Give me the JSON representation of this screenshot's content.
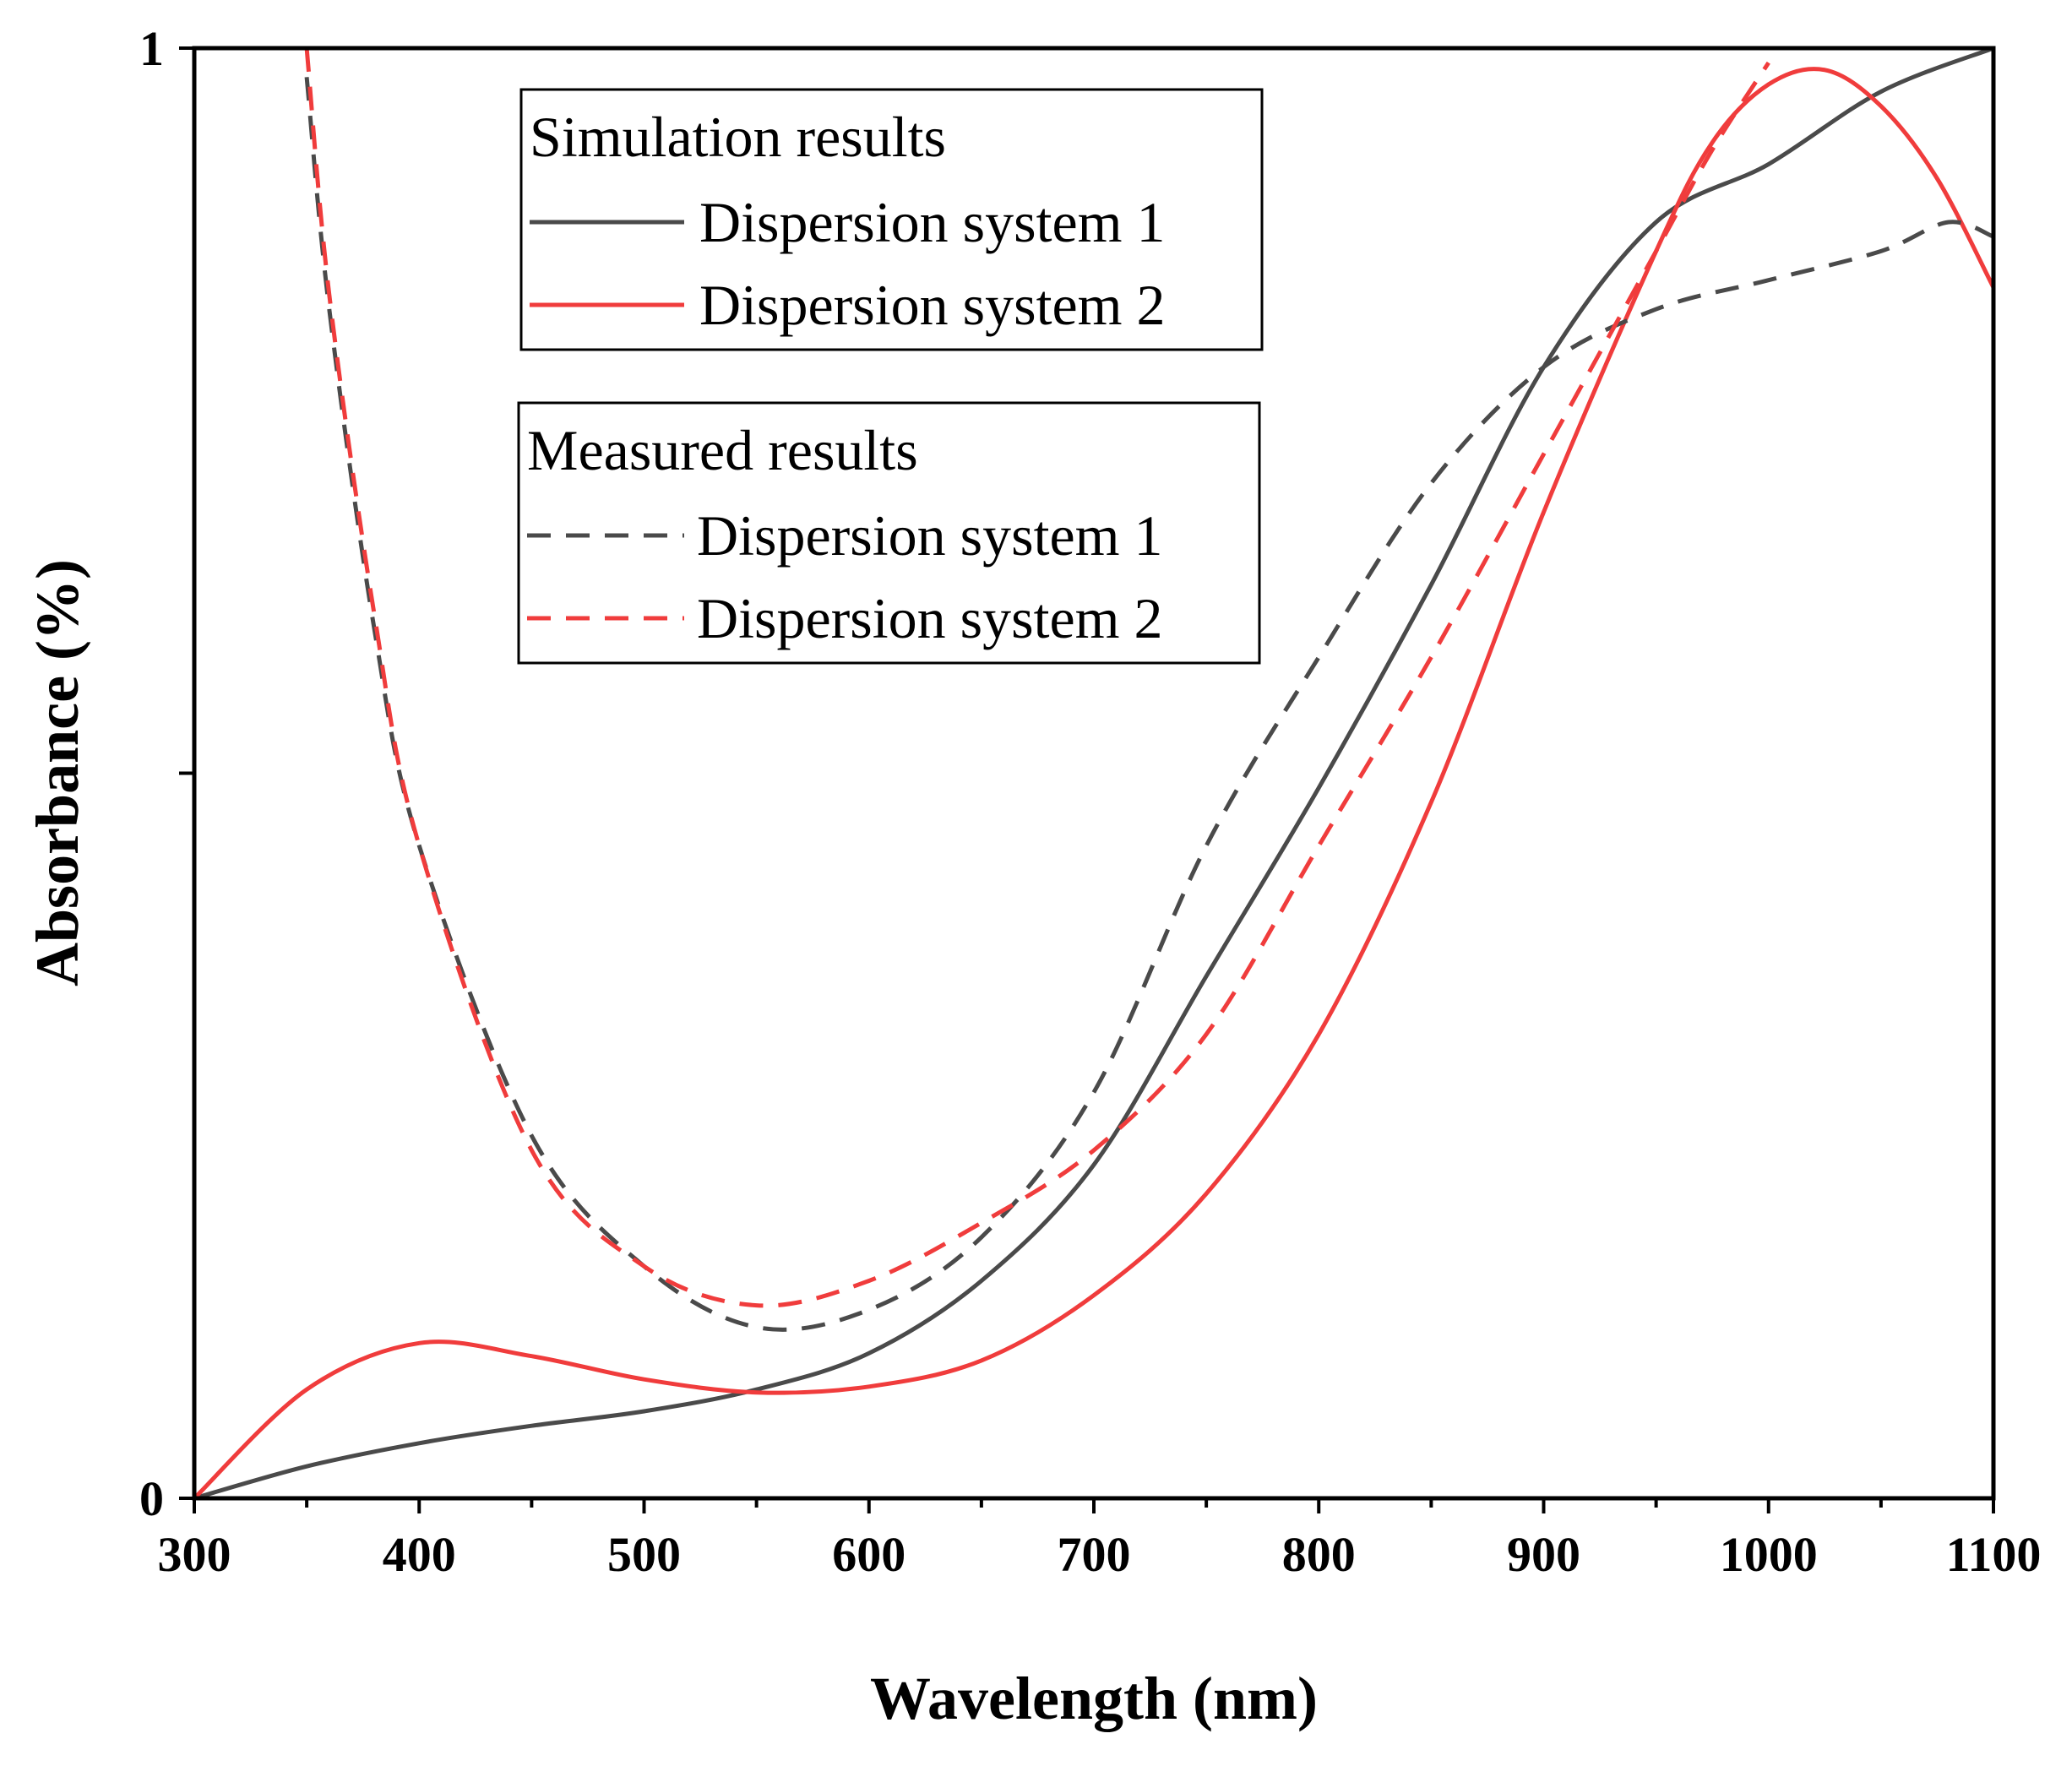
{
  "chart_data": {
    "type": "line",
    "xlabel": "Wavelength (nm)",
    "ylabel": "Absorbance (%)",
    "xlim": [
      300,
      1100
    ],
    "ylim": [
      0,
      1
    ],
    "x_ticks": [
      300,
      400,
      500,
      600,
      700,
      800,
      900,
      1000,
      1100
    ],
    "x_tick_labels": [
      "300",
      "400",
      "500",
      "600",
      "700",
      "800",
      "900",
      "1000",
      "1100"
    ],
    "y_ticks": [
      0,
      0.5,
      1
    ],
    "y_tick_labels": [
      "0",
      "",
      "1"
    ],
    "legend_groups": [
      {
        "title": "Simulation results",
        "entries": [
          "Dispersion system 1",
          "Dispersion system 2"
        ]
      },
      {
        "title": "Measured results",
        "entries": [
          "Dispersion system 1",
          "Dispersion system 2"
        ]
      }
    ],
    "series": [
      {
        "name": "Simulation results - Dispersion system 1",
        "color": "#4a4a4a",
        "dash": "solid",
        "x": [
          300,
          350,
          400,
          450,
          500,
          550,
          600,
          650,
          700,
          750,
          800,
          850,
          900,
          950,
          1000,
          1050,
          1100
        ],
        "y": [
          0.0,
          0.022,
          0.038,
          0.05,
          0.06,
          0.075,
          0.1,
          0.15,
          0.23,
          0.36,
          0.49,
          0.63,
          0.78,
          0.88,
          0.92,
          0.97,
          1.0
        ]
      },
      {
        "name": "Simulation results - Dispersion system 2",
        "color": "#f03c3c",
        "dash": "solid",
        "x": [
          300,
          350,
          400,
          450,
          500,
          550,
          600,
          650,
          700,
          750,
          800,
          850,
          900,
          950,
          975,
          1000,
          1025,
          1050,
          1075,
          1100
        ],
        "y": [
          0.0,
          0.075,
          0.107,
          0.098,
          0.082,
          0.073,
          0.077,
          0.095,
          0.14,
          0.21,
          0.32,
          0.48,
          0.68,
          0.86,
          0.935,
          0.975,
          0.985,
          0.96,
          0.91,
          0.835
        ]
      },
      {
        "name": "Measured results - Dispersion system 1",
        "color": "#4a4a4a",
        "dash": "dashed",
        "x": [
          350,
          360,
          380,
          400,
          450,
          500,
          550,
          600,
          650,
          700,
          750,
          800,
          850,
          900,
          950,
          1000,
          1050,
          1080,
          1100
        ],
        "y": [
          0.98,
          0.82,
          0.6,
          0.45,
          0.25,
          0.16,
          0.118,
          0.13,
          0.18,
          0.28,
          0.45,
          0.58,
          0.7,
          0.78,
          0.82,
          0.84,
          0.86,
          0.88,
          0.87
        ]
      },
      {
        "name": "Measured results - Dispersion system 2",
        "color": "#f03c3c",
        "dash": "dashed",
        "x": [
          350,
          360,
          380,
          400,
          450,
          500,
          550,
          600,
          650,
          700,
          750,
          800,
          850,
          900,
          950,
          975,
          1000
        ],
        "y": [
          1.0,
          0.83,
          0.61,
          0.45,
          0.24,
          0.16,
          0.133,
          0.15,
          0.19,
          0.24,
          0.32,
          0.45,
          0.58,
          0.72,
          0.86,
          0.93,
          0.99
        ]
      }
    ]
  }
}
